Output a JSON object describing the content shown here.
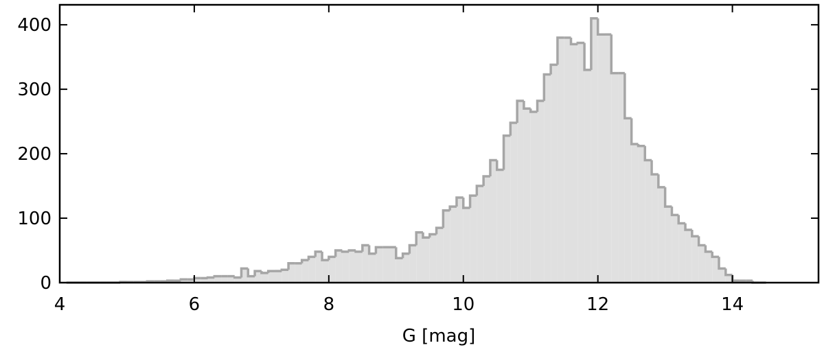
{
  "chart_data": {
    "type": "histogram",
    "x_label": "G [mag]",
    "bins": [
      4.1,
      4.2,
      4.3,
      4.4,
      4.5,
      4.6,
      4.7,
      4.8,
      4.9,
      5.0,
      5.1,
      5.2,
      5.3,
      5.4,
      5.5,
      5.6,
      5.7,
      5.8,
      5.9,
      6.0,
      6.1,
      6.2,
      6.3,
      6.4,
      6.5,
      6.6,
      6.7,
      6.8,
      6.9,
      7.0,
      7.1,
      7.2,
      7.3,
      7.4,
      7.5,
      7.6,
      7.7,
      7.8,
      7.9,
      8.0,
      8.1,
      8.2,
      8.3,
      8.4,
      8.5,
      8.6,
      8.7,
      8.8,
      8.9,
      9.0,
      9.1,
      9.2,
      9.3,
      9.4,
      9.5,
      9.6,
      9.7,
      9.8,
      9.9,
      10.0,
      10.1,
      10.2,
      10.3,
      10.4,
      10.5,
      10.6,
      10.7,
      10.8,
      10.9,
      11.0,
      11.1,
      11.2,
      11.3,
      11.4,
      11.5,
      11.6,
      11.7,
      11.8,
      11.9,
      12.0,
      12.1,
      12.2,
      12.3,
      12.4,
      12.5,
      12.6,
      12.7,
      12.8,
      12.9,
      13.0,
      13.1,
      13.2,
      13.3,
      13.4,
      13.5,
      13.6,
      13.7,
      13.8,
      13.9,
      14.0,
      14.1,
      14.2,
      14.3,
      14.4,
      14.5
    ],
    "values": [
      0,
      0,
      0,
      0,
      0,
      0,
      0,
      0,
      1,
      1,
      1,
      1,
      2,
      2,
      2,
      3,
      3,
      5,
      5,
      7,
      7,
      8,
      10,
      10,
      10,
      8,
      22,
      10,
      18,
      15,
      18,
      18,
      20,
      30,
      30,
      35,
      40,
      48,
      35,
      40,
      50,
      48,
      50,
      48,
      58,
      45,
      55,
      55,
      55,
      38,
      45,
      58,
      78,
      70,
      75,
      85,
      112,
      118,
      132,
      116,
      135,
      150,
      165,
      190,
      175,
      228,
      248,
      282,
      270,
      265,
      282,
      323,
      338,
      380,
      380,
      370,
      372,
      330,
      410,
      385,
      385,
      325,
      325,
      255,
      215,
      212,
      190,
      168,
      148,
      118,
      105,
      92,
      82,
      72,
      58,
      48,
      40,
      22,
      12,
      3,
      3,
      3,
      0,
      0
    ],
    "color": "#e0e0e0",
    "edge_color": "#a6a6a6",
    "xlim": [
      4,
      15.28
    ],
    "ylim": [
      0,
      431
    ],
    "xticks": [
      4,
      6,
      8,
      10,
      12,
      14
    ],
    "yticks": [
      0,
      100,
      200,
      300,
      400
    ]
  }
}
